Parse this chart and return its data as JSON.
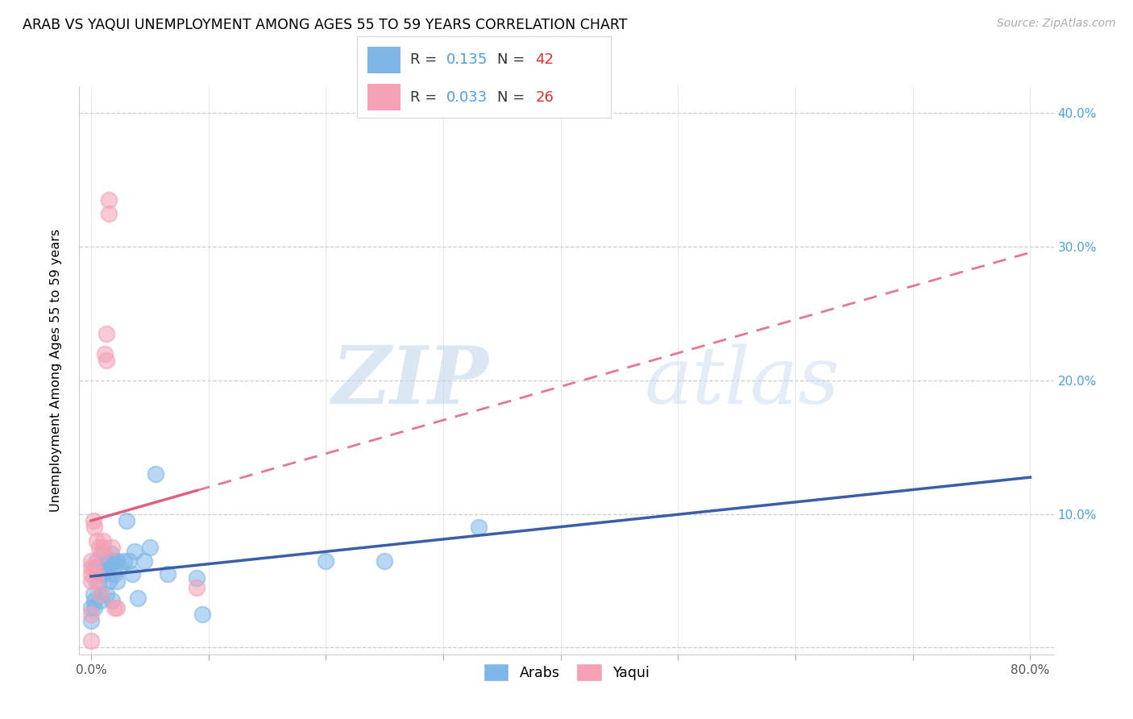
{
  "title": "ARAB VS YAQUI UNEMPLOYMENT AMONG AGES 55 TO 59 YEARS CORRELATION CHART",
  "source": "Source: ZipAtlas.com",
  "ylabel": "Unemployment Among Ages 55 to 59 years",
  "xlim": [
    -0.01,
    0.82
  ],
  "ylim": [
    -0.005,
    0.42
  ],
  "xticks": [
    0.0,
    0.1,
    0.2,
    0.3,
    0.4,
    0.5,
    0.6,
    0.7,
    0.8
  ],
  "yticks": [
    0.0,
    0.1,
    0.2,
    0.3,
    0.4
  ],
  "xtick_labels": [
    "0.0%",
    "",
    "",
    "",
    "",
    "",
    "",
    "",
    "80.0%"
  ],
  "ytick_labels_right": [
    "",
    "10.0%",
    "20.0%",
    "30.0%",
    "40.0%"
  ],
  "arab_R": 0.135,
  "arab_N": 42,
  "yaqui_R": 0.033,
  "yaqui_N": 26,
  "arab_color": "#7EB6E8",
  "yaqui_color": "#F4A0B5",
  "arab_line_color": "#3B5EA8",
  "yaqui_line_color": "#E06080",
  "watermark_zip": "ZIP",
  "watermark_atlas": "atlas",
  "arab_x": [
    0.0,
    0.0,
    0.002,
    0.003,
    0.003,
    0.005,
    0.005,
    0.007,
    0.007,
    0.008,
    0.008,
    0.01,
    0.01,
    0.01,
    0.012,
    0.013,
    0.013,
    0.015,
    0.015,
    0.017,
    0.018,
    0.018,
    0.02,
    0.02,
    0.022,
    0.022,
    0.025,
    0.028,
    0.03,
    0.032,
    0.035,
    0.037,
    0.04,
    0.045,
    0.05,
    0.055,
    0.065,
    0.09,
    0.095,
    0.2,
    0.25,
    0.33
  ],
  "arab_y": [
    0.03,
    0.02,
    0.04,
    0.035,
    0.03,
    0.065,
    0.06,
    0.055,
    0.05,
    0.04,
    0.035,
    0.07,
    0.06,
    0.055,
    0.065,
    0.06,
    0.04,
    0.06,
    0.05,
    0.07,
    0.065,
    0.035,
    0.065,
    0.055,
    0.065,
    0.05,
    0.06,
    0.065,
    0.095,
    0.065,
    0.055,
    0.072,
    0.037,
    0.065,
    0.075,
    0.13,
    0.055,
    0.052,
    0.025,
    0.065,
    0.065,
    0.09
  ],
  "yaqui_x": [
    0.0,
    0.0,
    0.0,
    0.0,
    0.0,
    0.0,
    0.002,
    0.003,
    0.003,
    0.004,
    0.004,
    0.005,
    0.007,
    0.008,
    0.008,
    0.01,
    0.01,
    0.012,
    0.013,
    0.013,
    0.015,
    0.015,
    0.018,
    0.02,
    0.022,
    0.09
  ],
  "yaqui_y": [
    0.065,
    0.06,
    0.055,
    0.05,
    0.025,
    0.005,
    0.095,
    0.09,
    0.06,
    0.055,
    0.05,
    0.08,
    0.075,
    0.07,
    0.04,
    0.08,
    0.075,
    0.22,
    0.235,
    0.215,
    0.335,
    0.325,
    0.075,
    0.03,
    0.03,
    0.045
  ]
}
